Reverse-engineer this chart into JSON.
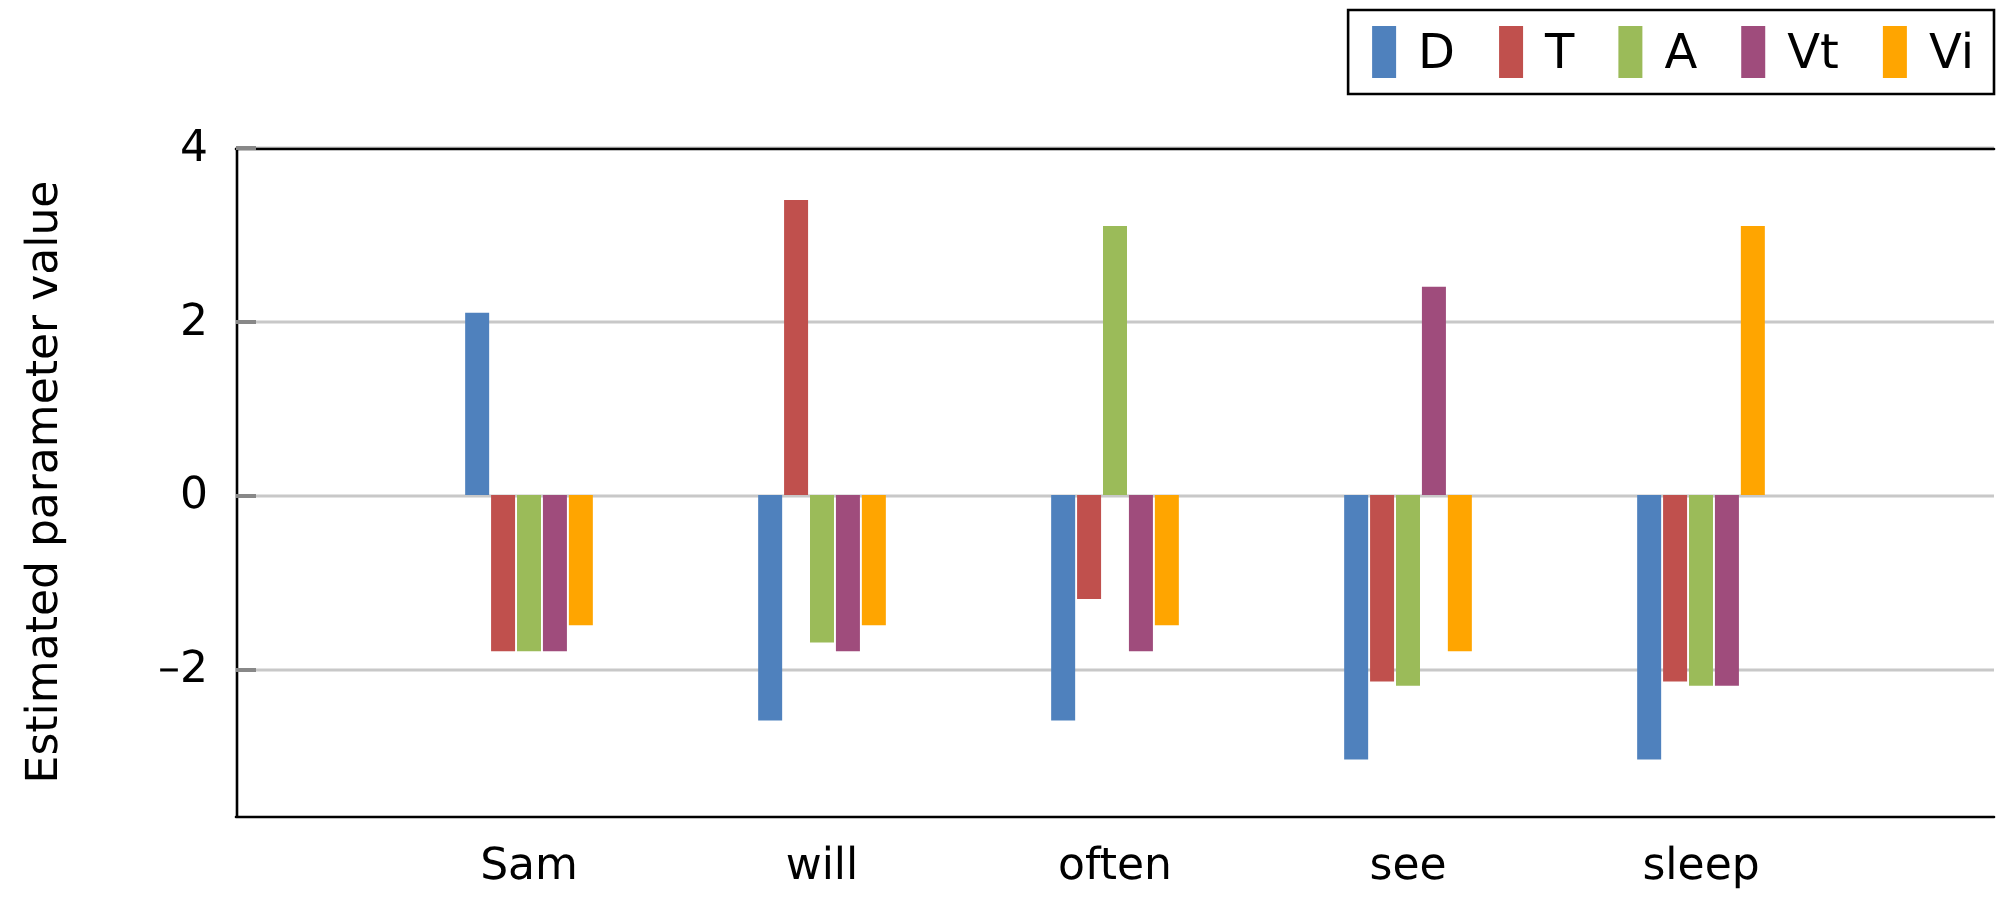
{
  "chart_data": {
    "type": "bar",
    "ylabel": "Estimated parameter value",
    "categories": [
      "Sam",
      "will",
      "often",
      "see",
      "sleep"
    ],
    "series": [
      {
        "name": "D",
        "color": "#4f81bd",
        "values": [
          2.1,
          -2.6,
          -2.6,
          -3.05,
          -3.05
        ]
      },
      {
        "name": "T",
        "color": "#c0504d",
        "values": [
          -1.8,
          3.4,
          -1.2,
          -2.15,
          -2.15
        ]
      },
      {
        "name": "A",
        "color": "#9bbb59",
        "values": [
          -1.8,
          -1.7,
          3.1,
          -2.2,
          -2.2
        ]
      },
      {
        "name": "Vt",
        "color": "#9f4c7c",
        "values": [
          -1.8,
          -1.8,
          -1.8,
          2.4,
          -2.2
        ]
      },
      {
        "name": "Vi",
        "color": "#ffa500",
        "values": [
          -1.5,
          -1.5,
          -1.5,
          -1.8,
          3.1
        ]
      }
    ],
    "ylim": [
      -3.7,
      4
    ],
    "yticks": [
      {
        "value": -2,
        "label": "–2"
      },
      0,
      2,
      4
    ],
    "grid": "y",
    "legend": "top right"
  }
}
